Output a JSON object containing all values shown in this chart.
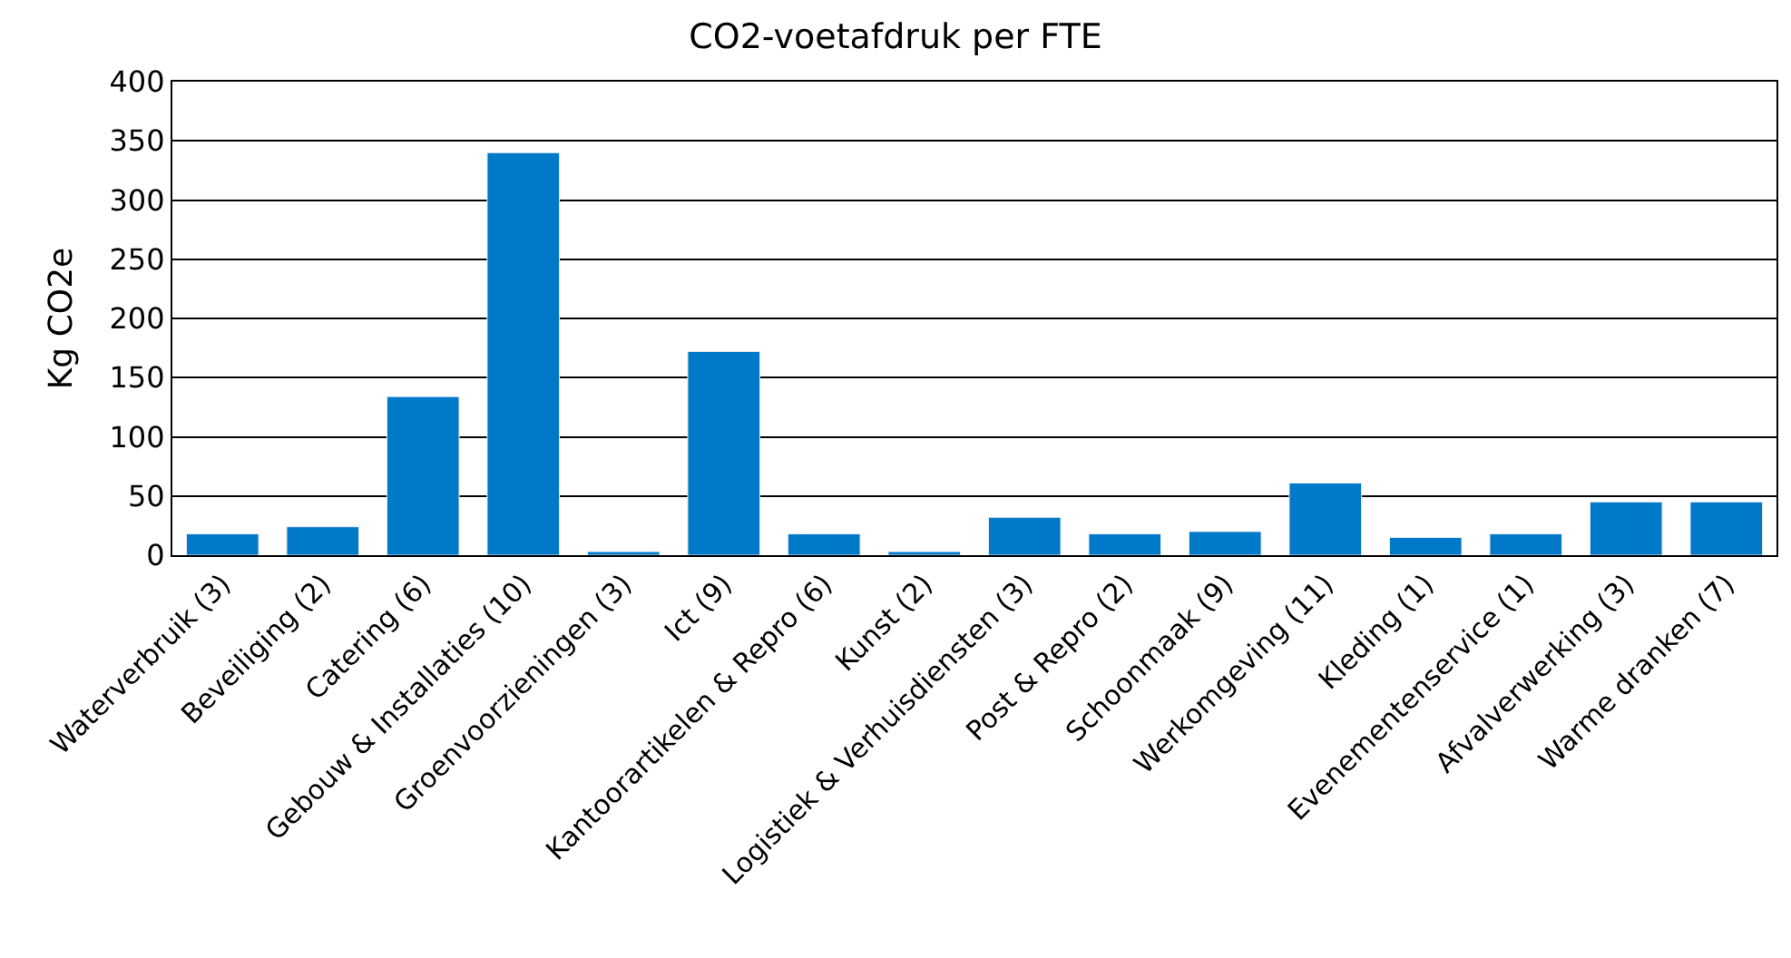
{
  "chart_data": {
    "type": "bar",
    "title": "CO2-voetafdruk per FTE",
    "ylabel": "Kg CO2e",
    "categories": [
      "Waterverbruik (3)",
      "Beveiliging (2)",
      "Catering (6)",
      "Gebouw & Installaties (10)",
      "Groenvoorzieningen (3)",
      "Ict (9)",
      "Kantoorartikelen & Repro (6)",
      "Kunst (2)",
      "Logistiek & Verhuisdiensten (3)",
      "Post & Repro (2)",
      "Schoonmaak (9)",
      "Werkomgeving (11)",
      "Kleding (1)",
      "Evenementenservice (1)",
      "Afvalverwerking (3)",
      "Warme dranken (7)"
    ],
    "values": [
      18,
      24,
      134,
      340,
      3,
      172,
      18,
      3,
      32,
      18,
      20,
      61,
      15,
      18,
      45,
      45
    ],
    "color": "#0079c8",
    "ylim": [
      0,
      400
    ],
    "yticks": [
      0,
      50,
      100,
      150,
      200,
      250,
      300,
      350,
      400
    ],
    "grid": "y",
    "legend": false
  }
}
